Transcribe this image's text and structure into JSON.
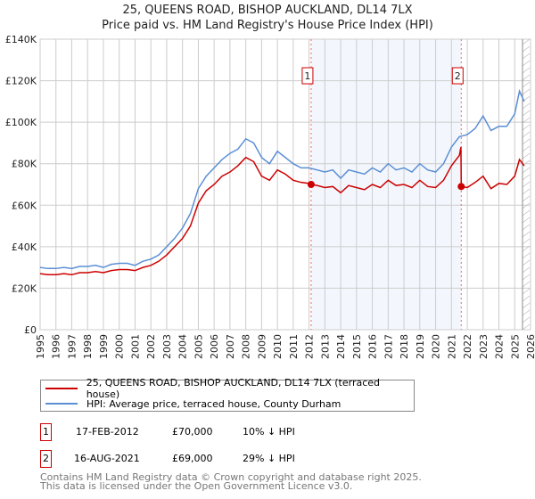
{
  "title": "25, QUEENS ROAD, BISHOP AUCKLAND, DL14 7LX",
  "subtitle": "Price paid vs. HM Land Registry's House Price Index (HPI)",
  "chart_data": {
    "type": "line",
    "xlim": [
      1995,
      2026
    ],
    "ylim": [
      0,
      140000
    ],
    "x_ticks": [
      "1995",
      "1996",
      "1997",
      "1998",
      "1999",
      "2000",
      "2001",
      "2002",
      "2003",
      "2004",
      "2005",
      "2006",
      "2007",
      "2008",
      "2009",
      "2010",
      "2011",
      "2012",
      "2013",
      "2014",
      "2015",
      "2016",
      "2017",
      "2018",
      "2019",
      "2020",
      "2021",
      "2022",
      "2023",
      "2024",
      "2025",
      "2026"
    ],
    "y_ticks": [
      {
        "v": 0,
        "label": "£0"
      },
      {
        "v": 20000,
        "label": "£20K"
      },
      {
        "v": 40000,
        "label": "£40K"
      },
      {
        "v": 60000,
        "label": "£60K"
      },
      {
        "v": 80000,
        "label": "£80K"
      },
      {
        "v": 100000,
        "label": "£100K"
      },
      {
        "v": 120000,
        "label": "£120K"
      },
      {
        "v": 140000,
        "label": "£140K"
      }
    ],
    "grid": true,
    "shaded_range": [
      2012.13,
      2021.62
    ],
    "series": [
      {
        "name": "25, QUEENS ROAD, BISHOP AUCKLAND, DL14 7LX (terraced house)",
        "color": "#cc0000",
        "x": [
          1995,
          1995.5,
          1996,
          1996.5,
          1997,
          1997.5,
          1998,
          1998.5,
          1999,
          1999.5,
          2000,
          2000.5,
          2001,
          2001.5,
          2002,
          2002.5,
          2003,
          2003.5,
          2004,
          2004.5,
          2005,
          2005.5,
          2006,
          2006.5,
          2007,
          2007.5,
          2008,
          2008.5,
          2009,
          2009.5,
          2010,
          2010.5,
          2011,
          2011.5,
          2012,
          2012.13,
          2012.5,
          2013,
          2013.5,
          2014,
          2014.5,
          2015,
          2015.5,
          2016,
          2016.5,
          2017,
          2017.5,
          2018,
          2018.5,
          2019,
          2019.5,
          2020,
          2020.5,
          2021,
          2021.5,
          2021.6,
          2021.62,
          2022,
          2022.5,
          2023,
          2023.5,
          2024,
          2024.5,
          2025,
          2025.3,
          2025.6
        ],
        "y": [
          27000,
          26500,
          26500,
          27000,
          26500,
          27500,
          27500,
          28000,
          27500,
          28500,
          29000,
          29000,
          28500,
          30000,
          31000,
          33000,
          36000,
          40000,
          44000,
          50000,
          61000,
          67000,
          70000,
          74000,
          76000,
          79000,
          83000,
          81000,
          74000,
          72000,
          77000,
          75000,
          72000,
          71000,
          70500,
          70000,
          69500,
          68500,
          69000,
          66000,
          69500,
          68500,
          67500,
          70000,
          68500,
          72000,
          69500,
          70000,
          68500,
          72000,
          69000,
          68500,
          72000,
          79000,
          84000,
          88000,
          69000,
          68500,
          71000,
          74000,
          68000,
          70500,
          70000,
          74000,
          82000,
          79000
        ]
      },
      {
        "name": "HPI: Average price, terraced house, County Durham",
        "color": "#5b8fd4",
        "x": [
          1995,
          1995.5,
          1996,
          1996.5,
          1997,
          1997.5,
          1998,
          1998.5,
          1999,
          1999.5,
          2000,
          2000.5,
          2001,
          2001.5,
          2002,
          2002.5,
          2003,
          2003.5,
          2004,
          2004.5,
          2005,
          2005.5,
          2006,
          2006.5,
          2007,
          2007.5,
          2008,
          2008.5,
          2009,
          2009.5,
          2010,
          2010.5,
          2011,
          2011.5,
          2012,
          2012.5,
          2013,
          2013.5,
          2014,
          2014.5,
          2015,
          2015.5,
          2016,
          2016.5,
          2017,
          2017.5,
          2018,
          2018.5,
          2019,
          2019.5,
          2020,
          2020.5,
          2021,
          2021.5,
          2022,
          2022.5,
          2023,
          2023.5,
          2024,
          2024.5,
          2025,
          2025.3,
          2025.6
        ],
        "y": [
          30000,
          29500,
          29500,
          30000,
          29500,
          30500,
          30500,
          31000,
          30000,
          31500,
          32000,
          32000,
          31000,
          33000,
          34000,
          36000,
          40000,
          44000,
          49000,
          56000,
          68000,
          74000,
          78000,
          82000,
          85000,
          87000,
          92000,
          90000,
          83000,
          80000,
          86000,
          83000,
          80000,
          78000,
          78000,
          77000,
          76000,
          77000,
          73000,
          77000,
          76000,
          75000,
          78000,
          76000,
          80000,
          77000,
          78000,
          76000,
          80000,
          77000,
          76000,
          80000,
          88000,
          93000,
          94000,
          97000,
          103000,
          96000,
          98000,
          98000,
          104000,
          115000,
          110000
        ]
      }
    ],
    "markers": [
      {
        "id": "1",
        "x": 2012.13,
        "y": 70000
      },
      {
        "id": "2",
        "x": 2021.62,
        "y": 69000
      }
    ]
  },
  "legend": {
    "red_label": "25, QUEENS ROAD, BISHOP AUCKLAND, DL14 7LX (terraced house)",
    "blue_label": "HPI: Average price, terraced house, County Durham"
  },
  "transactions": [
    {
      "id": "1",
      "date": "17-FEB-2012",
      "price": "£70,000",
      "diff": "10% ↓ HPI"
    },
    {
      "id": "2",
      "date": "16-AUG-2021",
      "price": "£69,000",
      "diff": "29% ↓ HPI"
    }
  ],
  "footer": {
    "line1": "Contains HM Land Registry data © Crown copyright and database right 2025.",
    "line2": "This data is licensed under the Open Government Licence v3.0."
  }
}
